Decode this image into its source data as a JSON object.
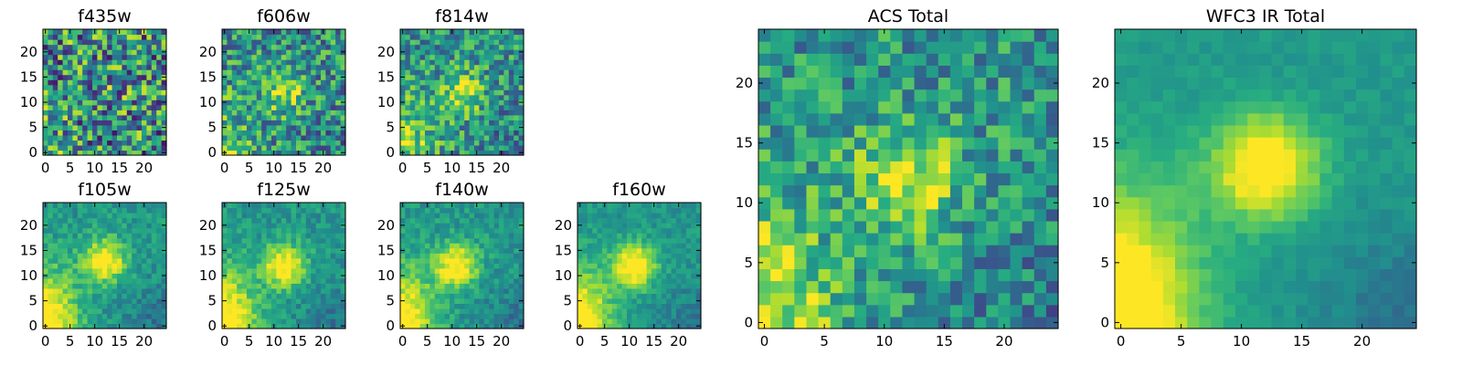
{
  "colormap": "viridis",
  "chart_data": [
    {
      "type": "heatmap",
      "title": "f435w",
      "xticks": [
        0,
        5,
        10,
        15,
        20
      ],
      "yticks": [
        0,
        5,
        10,
        15,
        20
      ],
      "xlim": [
        0,
        25
      ],
      "ylim": [
        0,
        25
      ],
      "grid_size": 25,
      "blob_center": [
        13,
        13
      ],
      "blob_strength": 0.05,
      "noise": 0.55,
      "corner_glow": 0.05
    },
    {
      "type": "heatmap",
      "title": "f606w",
      "xticks": [
        0,
        5,
        10,
        15,
        20
      ],
      "yticks": [
        0,
        5,
        10,
        15,
        20
      ],
      "xlim": [
        0,
        25
      ],
      "ylim": [
        0,
        25
      ],
      "grid_size": 25,
      "blob_center": [
        12,
        12
      ],
      "blob_strength": 0.35,
      "noise": 0.4,
      "corner_glow": 0.25
    },
    {
      "type": "heatmap",
      "title": "f814w",
      "xticks": [
        0,
        5,
        10,
        15,
        20
      ],
      "yticks": [
        0,
        5,
        10,
        15,
        20
      ],
      "xlim": [
        0,
        25
      ],
      "ylim": [
        0,
        25
      ],
      "grid_size": 25,
      "blob_center": [
        12,
        12
      ],
      "blob_strength": 0.4,
      "noise": 0.35,
      "corner_glow": 0.35
    },
    {
      "type": "heatmap",
      "title": "f105w",
      "xticks": [
        0,
        5,
        10,
        15,
        20
      ],
      "yticks": [
        0,
        5,
        10,
        15,
        20
      ],
      "xlim": [
        0,
        25
      ],
      "ylim": [
        0,
        25
      ],
      "grid_size": 25,
      "blob_center": [
        12,
        13
      ],
      "blob_strength": 0.55,
      "noise": 0.15,
      "corner_glow": 0.6
    },
    {
      "type": "heatmap",
      "title": "f125w",
      "xticks": [
        0,
        5,
        10,
        15,
        20
      ],
      "yticks": [
        0,
        5,
        10,
        15,
        20
      ],
      "xlim": [
        0,
        25
      ],
      "ylim": [
        0,
        25
      ],
      "grid_size": 25,
      "blob_center": [
        12,
        12
      ],
      "blob_strength": 0.55,
      "noise": 0.15,
      "corner_glow": 0.6
    },
    {
      "type": "heatmap",
      "title": "f140w",
      "xticks": [
        0,
        5,
        10,
        15,
        20
      ],
      "yticks": [
        0,
        5,
        10,
        15,
        20
      ],
      "xlim": [
        0,
        25
      ],
      "ylim": [
        0,
        25
      ],
      "grid_size": 25,
      "blob_center": [
        11,
        12
      ],
      "blob_strength": 0.55,
      "noise": 0.15,
      "corner_glow": 0.6
    },
    {
      "type": "heatmap",
      "title": "f160w",
      "xticks": [
        0,
        5,
        10,
        15,
        20
      ],
      "yticks": [
        0,
        5,
        10,
        15,
        20
      ],
      "xlim": [
        0,
        25
      ],
      "ylim": [
        0,
        25
      ],
      "grid_size": 25,
      "blob_center": [
        11,
        12
      ],
      "blob_strength": 0.6,
      "noise": 0.12,
      "corner_glow": 0.6
    },
    {
      "type": "heatmap",
      "title": "ACS Total",
      "xticks": [
        0,
        5,
        10,
        15,
        20
      ],
      "yticks": [
        0,
        5,
        10,
        15,
        20
      ],
      "xlim": [
        0,
        25
      ],
      "ylim": [
        0,
        25
      ],
      "grid_size": 25,
      "blob_center": [
        12,
        12
      ],
      "blob_strength": 0.45,
      "noise": 0.3,
      "corner_glow": 0.4
    },
    {
      "type": "heatmap",
      "title": "WFC3 IR Total",
      "xticks": [
        0,
        5,
        10,
        15,
        20
      ],
      "yticks": [
        0,
        5,
        10,
        15,
        20
      ],
      "xlim": [
        0,
        25
      ],
      "ylim": [
        0,
        25
      ],
      "grid_size": 25,
      "blob_center": [
        12,
        13
      ],
      "blob_strength": 0.6,
      "noise": 0.06,
      "corner_glow": 0.65
    }
  ]
}
